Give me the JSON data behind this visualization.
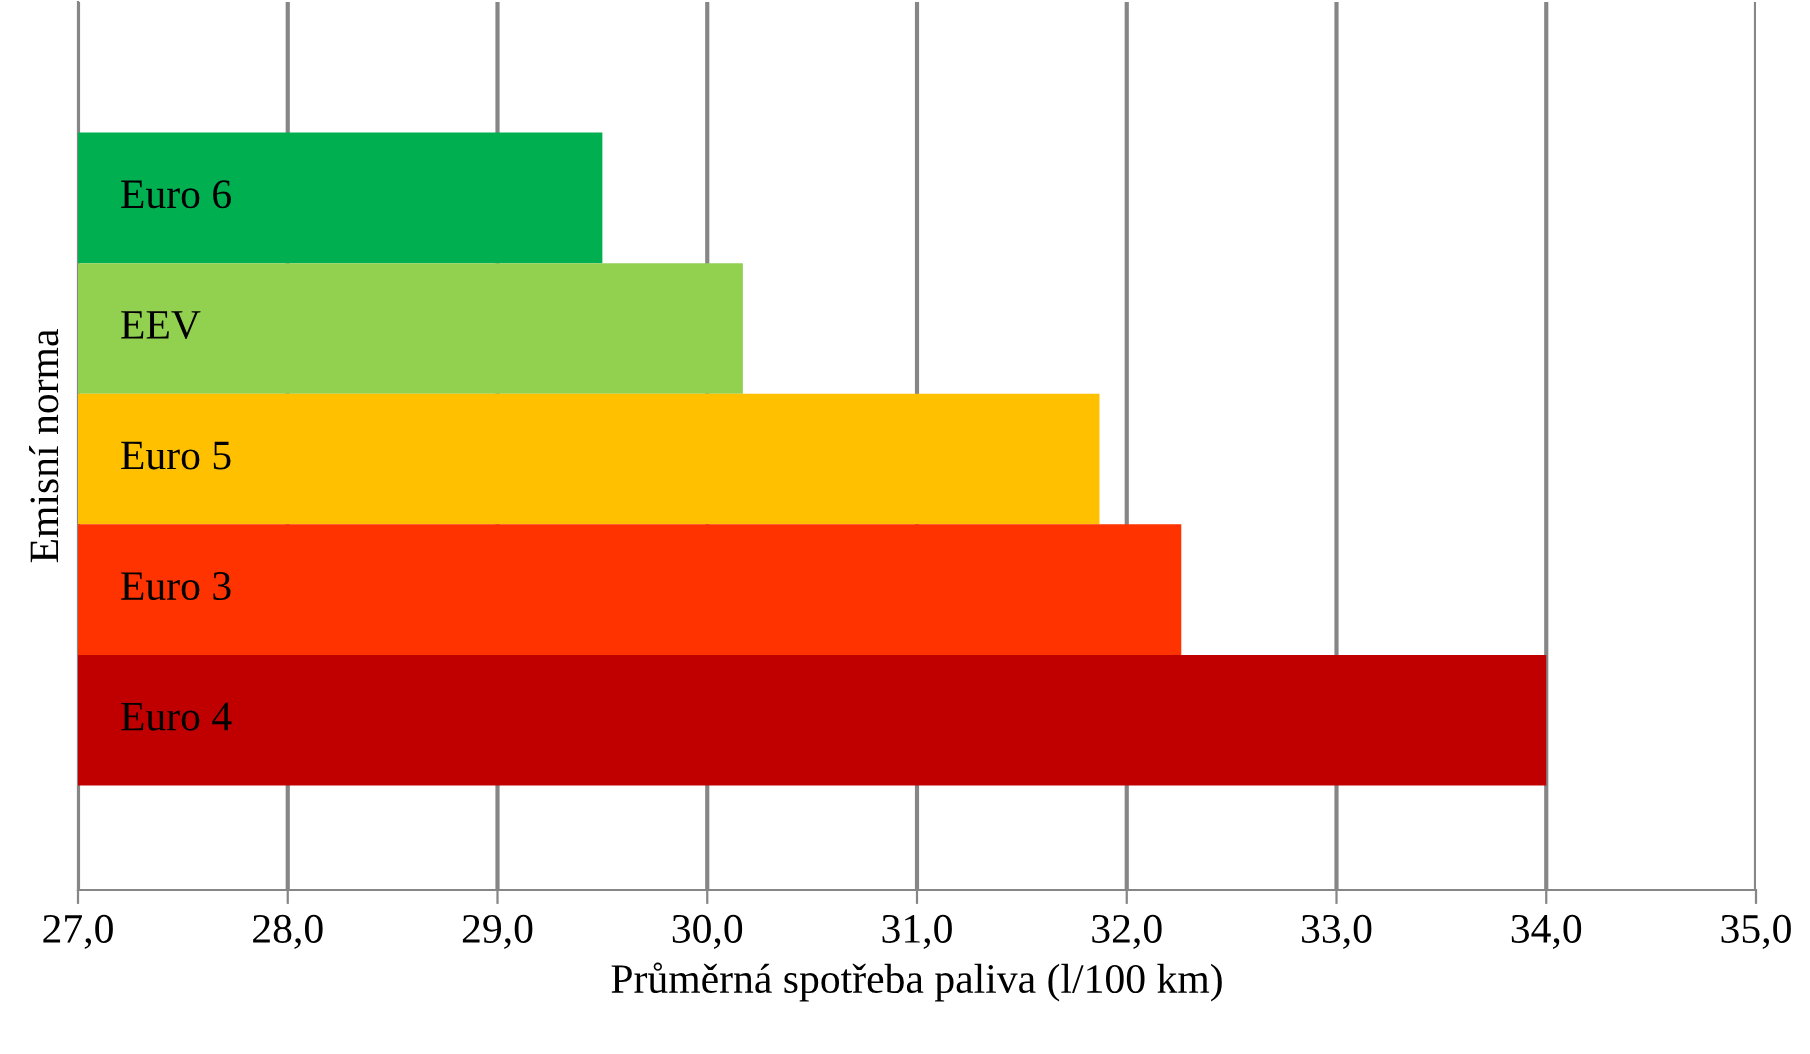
{
  "chart_data": {
    "type": "bar",
    "orientation": "horizontal",
    "xlabel": "Průměrná spotřeba paliva (l/100 km)",
    "ylabel": "Emisní norma",
    "categories": [
      "Euro 6",
      "EEV",
      "Euro 5",
      "Euro 3",
      "Euro 4"
    ],
    "values": [
      29.5,
      30.17,
      31.87,
      32.26,
      34.0
    ],
    "colors": [
      "#00b050",
      "#92d050",
      "#ffc000",
      "#ff3300",
      "#c00000"
    ],
    "xlim": [
      27,
      35
    ],
    "xticks": [
      {
        "value": 27,
        "label": "27,0"
      },
      {
        "value": 28,
        "label": "28,0"
      },
      {
        "value": 29,
        "label": "29,0"
      },
      {
        "value": 30,
        "label": "30,0"
      },
      {
        "value": 31,
        "label": "31,0"
      },
      {
        "value": 32,
        "label": "32,0"
      },
      {
        "value": 33,
        "label": "33,0"
      },
      {
        "value": 34,
        "label": "34,0"
      },
      {
        "value": 35,
        "label": "35,0"
      }
    ],
    "grid": "x"
  }
}
